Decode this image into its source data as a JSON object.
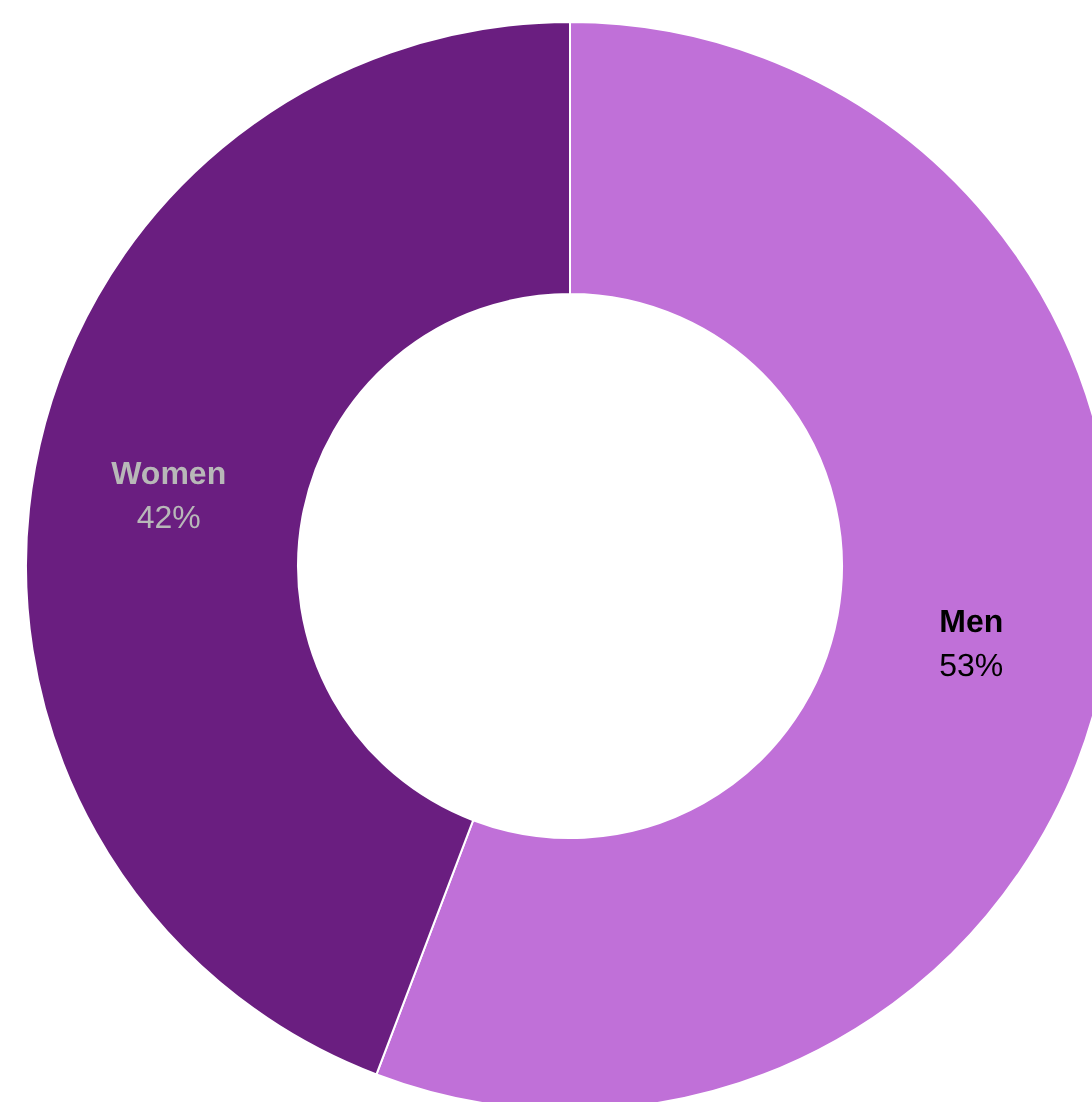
{
  "chart_data": {
    "type": "donut",
    "categories": [
      "Men",
      "Women"
    ],
    "values": [
      53,
      42
    ],
    "colors": [
      "#c070d8",
      "#6a1e80"
    ],
    "value_labels": [
      "53%",
      "42%"
    ]
  }
}
